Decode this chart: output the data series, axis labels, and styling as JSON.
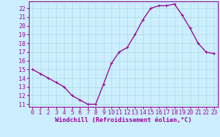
{
  "x": [
    0,
    1,
    2,
    3,
    4,
    5,
    6,
    7,
    8,
    9,
    10,
    11,
    12,
    13,
    14,
    15,
    16,
    17,
    18,
    19,
    20,
    21,
    22,
    23
  ],
  "y": [
    15.0,
    14.5,
    14.0,
    13.5,
    13.0,
    12.0,
    11.5,
    11.0,
    11.0,
    13.3,
    15.7,
    17.0,
    17.5,
    19.0,
    20.7,
    22.0,
    22.3,
    22.3,
    22.5,
    21.2,
    19.7,
    18.0,
    17.0,
    16.8
  ],
  "line_color": "#990099",
  "marker": "+",
  "marker_size": 3,
  "bg_color": "#cceeff",
  "grid_color": "#aadddd",
  "xlabel": "Windchill (Refroidissement éolien,°C)",
  "xlim": [
    -0.5,
    23.5
  ],
  "ylim": [
    10.7,
    22.8
  ],
  "yticks": [
    11,
    12,
    13,
    14,
    15,
    16,
    17,
    18,
    19,
    20,
    21,
    22
  ],
  "xticks": [
    0,
    1,
    2,
    3,
    4,
    5,
    6,
    7,
    8,
    9,
    10,
    11,
    12,
    13,
    14,
    15,
    16,
    17,
    18,
    19,
    20,
    21,
    22,
    23
  ],
  "xlabel_fontsize": 6.5,
  "tick_fontsize": 6.0,
  "line_width": 1.0,
  "marker_edge_width": 0.8
}
